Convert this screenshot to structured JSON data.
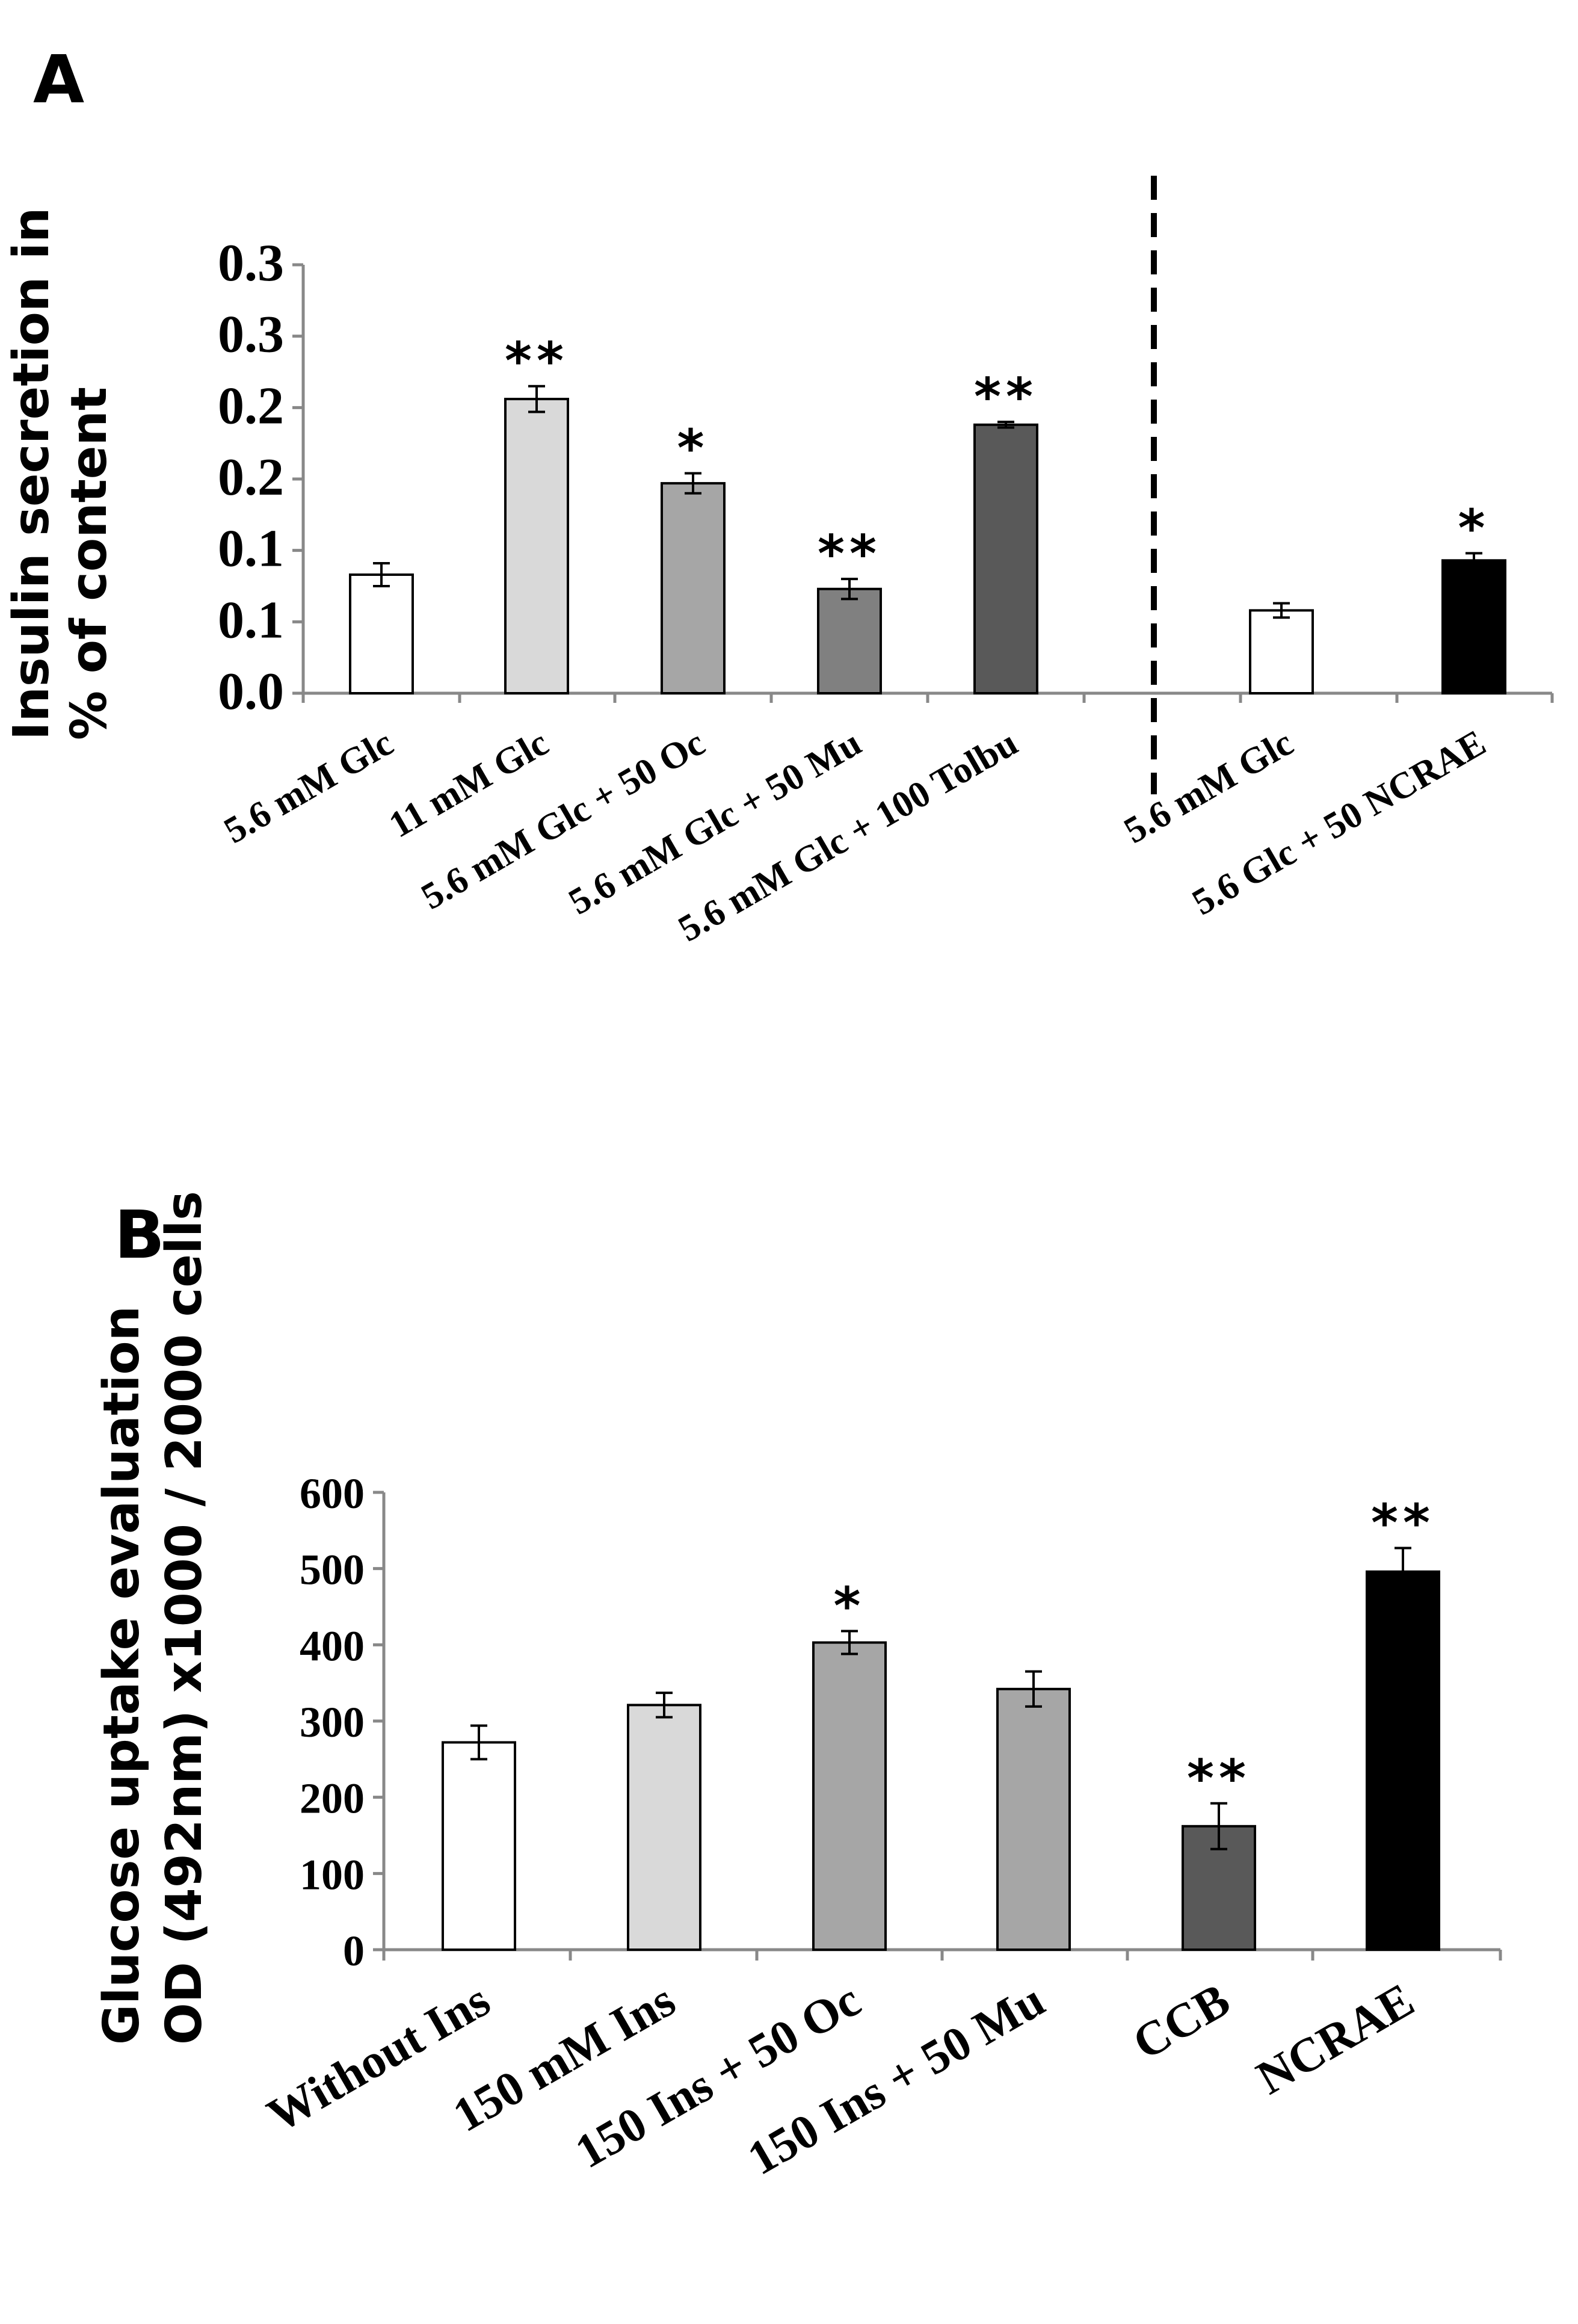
{
  "chart_data": [
    {
      "type": "bar",
      "panel": "A",
      "ylabel_line1": "Insulin secretion in",
      "ylabel_line2": "% of content",
      "ylim": [
        0,
        0.3
      ],
      "yticks": [
        "0.0",
        "0.1",
        "0.1",
        "0.2",
        "0.2",
        "0.3",
        "0.3"
      ],
      "grid": false,
      "divider": "dashed vertical line between the two groups",
      "categories": [
        "5.6 mM Glc",
        "11 mM Glc",
        "5.6 mM Glc + 50 Oc",
        "5.6 mM Glc + 50 Mu",
        "5.6 mM Glc + 100 Tolbu",
        "5.6 mM Glc",
        "5.6 Glc + 50 NCRAE"
      ],
      "values": [
        0.083,
        0.206,
        0.147,
        0.073,
        0.188,
        0.058,
        0.093
      ],
      "errors": [
        0.008,
        0.009,
        0.007,
        0.007,
        0.002,
        0.005,
        0.005
      ],
      "significance": [
        "",
        "**",
        "*",
        "**",
        "**",
        "",
        "*"
      ],
      "colors": [
        "#ffffff",
        "#d9d9d9",
        "#a6a6a6",
        "#808080",
        "#595959",
        "#ffffff",
        "#000000"
      ]
    },
    {
      "type": "bar",
      "panel": "B",
      "ylabel_line1": "Glucose uptake evaluation",
      "ylabel_line2": "OD (492nm) x1000 / 2000 cells",
      "ylim": [
        0,
        600
      ],
      "yticks": [
        "0",
        "100",
        "200",
        "300",
        "400",
        "500",
        "600"
      ],
      "grid": false,
      "categories": [
        "Without Ins",
        "150 mM Ins",
        "150 Ins + 50 Oc",
        "150 Ins + 50 Mu",
        "CCB",
        "NCRAE"
      ],
      "values": [
        272,
        321,
        403,
        342,
        162,
        496
      ],
      "errors": [
        22,
        16,
        15,
        23,
        30,
        31
      ],
      "significance": [
        "",
        "",
        "*",
        "",
        "**",
        "**"
      ],
      "colors": [
        "#ffffff",
        "#d9d9d9",
        "#a6a6a6",
        "#a6a6a6",
        "#595959",
        "#000000"
      ]
    }
  ]
}
